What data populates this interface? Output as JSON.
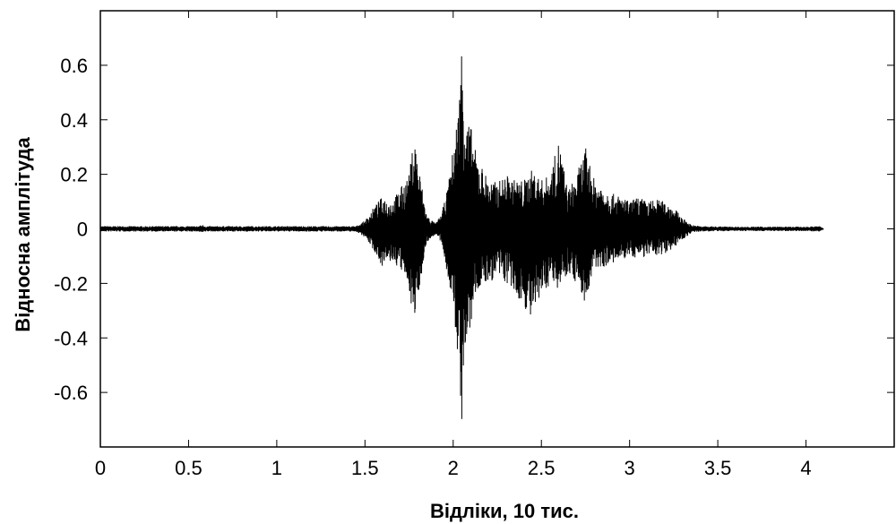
{
  "chart_data": {
    "type": "line",
    "title": "",
    "xlabel": "Відліки, 10 тис.",
    "ylabel": "Відносна амплітуда",
    "xlim": [
      0,
      4.5
    ],
    "ylim": [
      -0.8,
      0.8
    ],
    "xticks": [
      0,
      0.5,
      1,
      1.5,
      2,
      2.5,
      3,
      3.5,
      4
    ],
    "xtick_labels": [
      "0",
      "0.5",
      "1",
      "1.5",
      "2",
      "2.5",
      "3",
      "3.5",
      "4"
    ],
    "yticks": [
      0.6,
      0.4,
      0.2,
      0,
      -0.2,
      -0.4,
      -0.6
    ],
    "ytick_labels": [
      "0.6",
      "0.4",
      "0.2",
      "0",
      "-0.2",
      "-0.4",
      "-0.6"
    ],
    "grid": false,
    "line_color": "#000000",
    "envelope": {
      "x": [
        0,
        0.55,
        0.58,
        0.6,
        1.45,
        1.5,
        1.55,
        1.6,
        1.65,
        1.7,
        1.75,
        1.78,
        1.8,
        1.85,
        1.9,
        1.93,
        1.96,
        1.98,
        2.0,
        2.03,
        2.05,
        2.06,
        2.08,
        2.1,
        2.12,
        2.15,
        2.2,
        2.25,
        2.3,
        2.35,
        2.4,
        2.45,
        2.5,
        2.55,
        2.6,
        2.65,
        2.7,
        2.75,
        2.8,
        2.85,
        2.9,
        2.95,
        3.0,
        3.05,
        3.1,
        3.15,
        3.2,
        3.25,
        3.3,
        3.35,
        3.4,
        3.6,
        3.8,
        4.0,
        4.08,
        4.1
      ],
      "upper": [
        0.01,
        0.01,
        0.015,
        0.01,
        0.01,
        0.03,
        0.08,
        0.12,
        0.1,
        0.15,
        0.2,
        0.35,
        0.25,
        0.05,
        0.02,
        0.05,
        0.12,
        0.2,
        0.3,
        0.45,
        0.72,
        0.55,
        0.4,
        0.38,
        0.3,
        0.25,
        0.18,
        0.17,
        0.2,
        0.18,
        0.18,
        0.22,
        0.18,
        0.2,
        0.33,
        0.14,
        0.2,
        0.3,
        0.18,
        0.16,
        0.13,
        0.12,
        0.1,
        0.12,
        0.1,
        0.11,
        0.1,
        0.08,
        0.04,
        0.015,
        0.01,
        0.008,
        0.008,
        0.008,
        0.01,
        0.0
      ],
      "lower": [
        -0.01,
        -0.01,
        -0.015,
        -0.01,
        -0.01,
        -0.03,
        -0.08,
        -0.14,
        -0.12,
        -0.15,
        -0.22,
        -0.36,
        -0.25,
        -0.05,
        -0.02,
        -0.05,
        -0.14,
        -0.22,
        -0.3,
        -0.5,
        -0.73,
        -0.55,
        -0.4,
        -0.38,
        -0.25,
        -0.22,
        -0.2,
        -0.18,
        -0.2,
        -0.25,
        -0.28,
        -0.35,
        -0.25,
        -0.2,
        -0.22,
        -0.16,
        -0.2,
        -0.28,
        -0.15,
        -0.14,
        -0.13,
        -0.12,
        -0.1,
        -0.11,
        -0.1,
        -0.1,
        -0.09,
        -0.07,
        -0.04,
        -0.015,
        -0.01,
        -0.008,
        -0.008,
        -0.008,
        -0.01,
        0.0
      ]
    }
  }
}
